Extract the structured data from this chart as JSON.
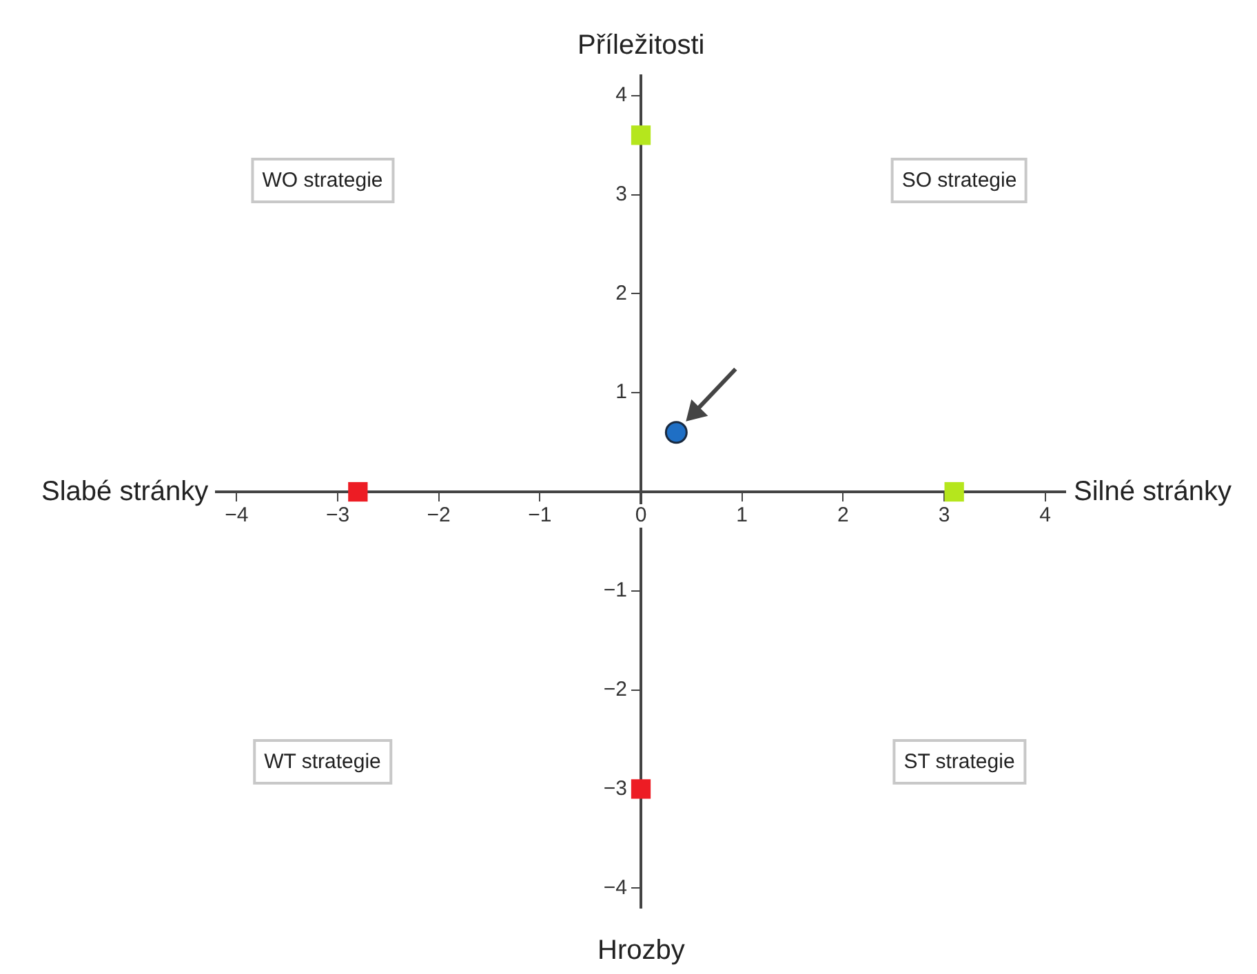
{
  "chart_data": {
    "type": "scatter",
    "xlabel": "Silné stránky",
    "ylabel": "Příležitosti",
    "annotations": [
      "WO strategie",
      "SO strategie",
      "WT strategie",
      "ST strategie",
      "Slabé stránky",
      "Hrozby"
    ],
    "xlim": [
      -4.2,
      4.2
    ],
    "ylim": [
      -4.2,
      4.2
    ],
    "xticks": [
      {
        "value": -4,
        "label": "−4"
      },
      {
        "value": -3,
        "label": "−3"
      },
      {
        "value": -2,
        "label": "−2"
      },
      {
        "value": -1,
        "label": "−1"
      },
      0,
      1,
      2,
      3,
      4
    ],
    "yticks": [
      {
        "value": -4,
        "label": "−4"
      },
      {
        "value": -3,
        "label": "−3"
      },
      {
        "value": -2,
        "label": "−2"
      },
      {
        "value": -1,
        "label": "−1"
      },
      {
        "value": 0,
        "label": null
      },
      1,
      2,
      3,
      4
    ],
    "series": [
      {
        "type": "scatter",
        "marker": "square",
        "x": [
          0,
          3.1,
          -2.8,
          0
        ],
        "values": [
          3.6,
          0,
          0,
          -3
        ],
        "colors": [
          "#b5e61d",
          "#b5e61d",
          "#ed1c24",
          "#ed1c24"
        ]
      },
      {
        "type": "scatter",
        "marker": "circle",
        "x": [
          0.35
        ],
        "values": [
          0.6
        ],
        "color": "#1f6fc5"
      }
    ],
    "grid": false,
    "legend": false
  }
}
